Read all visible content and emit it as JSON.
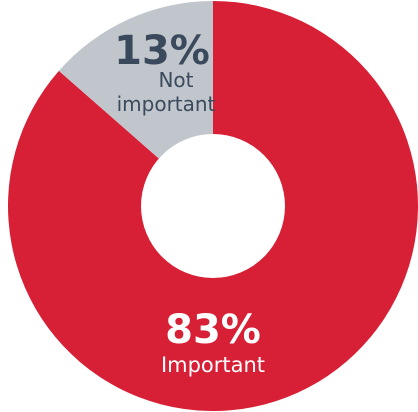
{
  "chart_data": {
    "type": "pie",
    "donut": true,
    "slices": [
      {
        "label": "Important",
        "value": 83,
        "value_label": "83%",
        "color": "#d71f35"
      },
      {
        "label": "Not important",
        "value_label": "13%",
        "value": 13,
        "color": "#c1c6cc"
      }
    ],
    "title": "",
    "legend": "none"
  },
  "colors": {
    "background": "#ffffff",
    "important_label_text": "#ffffff",
    "not_important_pct_text": "#3a4a5c",
    "not_important_label_text": "#3a4a5c"
  }
}
